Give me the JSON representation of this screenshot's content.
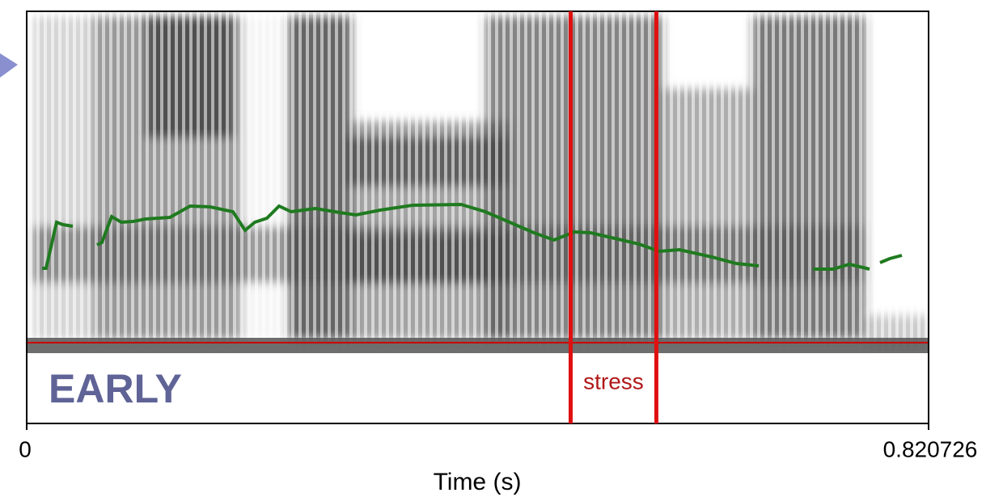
{
  "chart_data": {
    "type": "spectrogram",
    "label": "EARLY",
    "x_label": "Time (s)",
    "xlim": [
      0,
      0.820726
    ],
    "xticks": [
      0,
      0.820726
    ],
    "intervals": [
      {
        "name": "stress",
        "color": "#e01010",
        "x": [
          0.495,
          0.573
        ]
      }
    ]
  }
}
